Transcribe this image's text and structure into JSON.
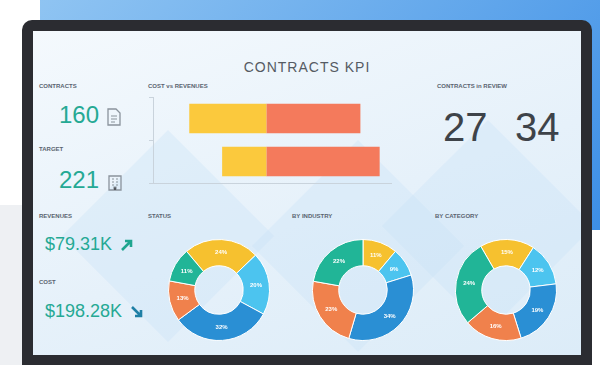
{
  "header": {
    "title": "CONTRACTS KPI"
  },
  "kpis": [
    {
      "label": "CONTRACTS",
      "value": 160
    },
    {
      "label": "TARGET",
      "value": 221
    },
    {
      "label": "REVENUES",
      "value": "$79.31K"
    },
    {
      "label": "COST",
      "value": "$198.28K"
    }
  ],
  "review": {
    "title": "CONTRACTS in REVIEW",
    "values": [
      27,
      34
    ]
  },
  "chart_data": [
    {
      "type": "bar",
      "title": "COST vs REVENUES",
      "orientation": "horizontal",
      "stacked": true,
      "categories": [
        null,
        null
      ],
      "series": [
        {
          "color": "#fbc93d",
          "values": [
            -68,
            -39
          ]
        },
        {
          "color": "#f47a5c",
          "values": [
            83,
            100
          ]
        }
      ],
      "xlim": [
        -100,
        110
      ],
      "tick_labels": false,
      "grid": false
    },
    {
      "type": "doughnut",
      "title": "STATUS",
      "values": [
        24,
        20,
        32,
        13,
        11
      ],
      "value_labels": [
        "24%",
        "20%",
        "32%",
        "13%",
        "11%"
      ],
      "colors": [
        "#f6c12f",
        "#4cc4ef",
        "#2a8fd4",
        "#f0814c",
        "#21b597"
      ],
      "data_labels": true
    },
    {
      "type": "doughnut",
      "title": "BY INDUSTRY",
      "values": [
        11,
        9,
        34,
        23,
        22
      ],
      "value_labels": [
        "11%",
        "9%",
        "34%",
        "23%",
        "22%"
      ],
      "colors": [
        "#f6c12f",
        "#4cc4ef",
        "#2a8fd4",
        "#f0814c",
        "#21b597"
      ],
      "data_labels": true
    },
    {
      "type": "doughnut",
      "title": "BY CATEGORY",
      "values": [
        15,
        12,
        19,
        16,
        24
      ],
      "value_labels": [
        "15%",
        "12%",
        "19%",
        "16%",
        "24%"
      ],
      "colors": [
        "#f6c12f",
        "#4cc4ef",
        "#2a8fd4",
        "#f0814c",
        "#21b597"
      ],
      "data_labels": true
    }
  ]
}
